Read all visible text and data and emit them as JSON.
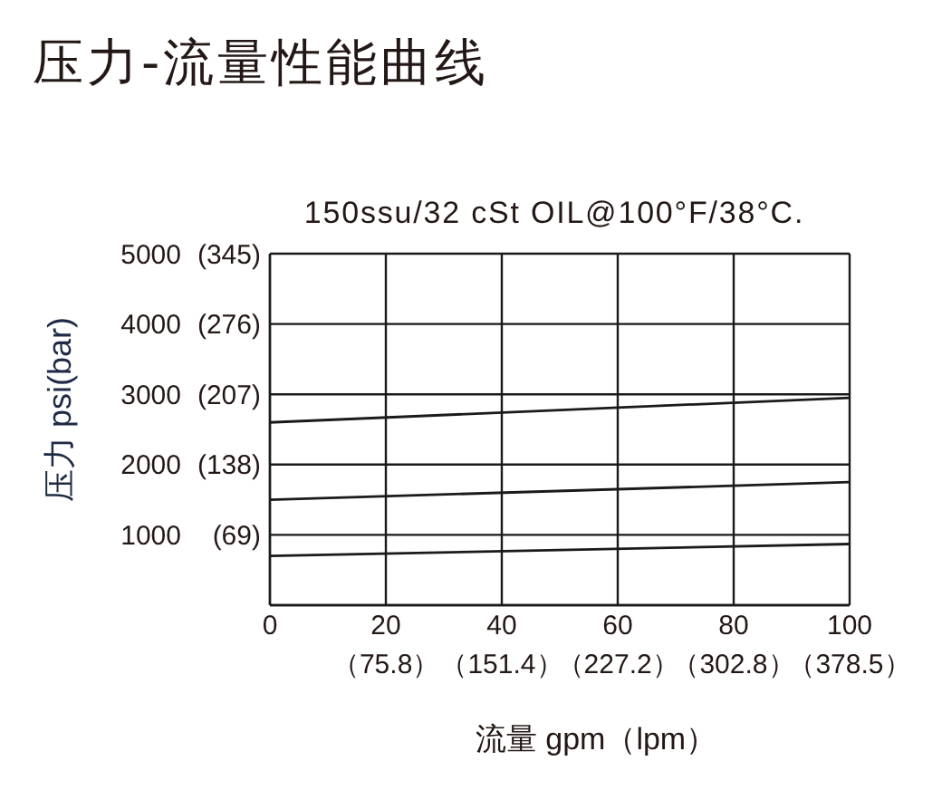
{
  "chart_data": {
    "type": "line",
    "title": "压力-流量性能曲线",
    "subtitle": "150ssu/32 cSt OIL@100°F/38°C.",
    "xlabel": "流量 gpm（lpm）",
    "ylabel": "压力 psi(bar)",
    "x": [
      0,
      100
    ],
    "series": [
      {
        "color": "#1a1a1a",
        "values": [
          2600,
          2950
        ]
      },
      {
        "color": "#1a1a1a",
        "values": [
          1500,
          1750
        ]
      },
      {
        "color": "#1a1a1a",
        "values": [
          700,
          870
        ]
      }
    ],
    "xlim": [
      0,
      100
    ],
    "xticks": [
      0,
      20,
      40,
      60,
      80,
      100
    ],
    "x2lim": [
      0,
      378.5
    ],
    "x2ticks": [
      {
        "value": 75.8,
        "label": "（75.8）"
      },
      {
        "value": 151.4,
        "label": "（151.4）"
      },
      {
        "value": 227.2,
        "label": "（227.2）"
      },
      {
        "value": 302.8,
        "label": "（302.8）"
      },
      {
        "value": 378.5,
        "label": "（378.5）"
      }
    ],
    "ylim": [
      0,
      5000
    ],
    "yticks": [
      1000,
      2000,
      3000,
      4000,
      5000
    ],
    "y2lim": [
      0,
      345
    ],
    "y2ticks": [
      {
        "value": 69,
        "label": "(69)"
      },
      {
        "value": 138,
        "label": "(138)"
      },
      {
        "value": 207,
        "label": "(207)"
      },
      {
        "value": 276,
        "label": "(276)"
      },
      {
        "value": 345,
        "label": "(345)"
      }
    ],
    "grid": true
  }
}
